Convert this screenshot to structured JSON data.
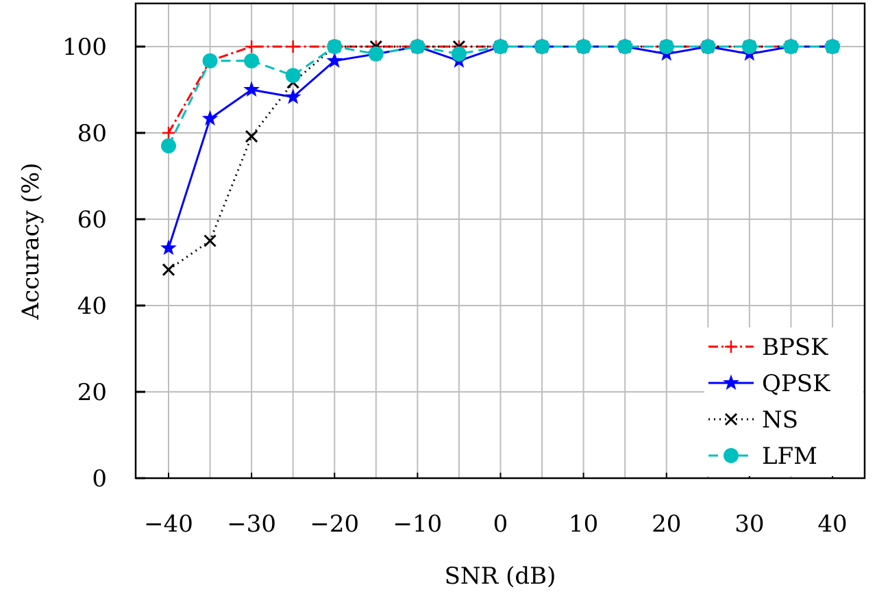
{
  "chart_data": {
    "type": "line",
    "title": "",
    "xlabel": "SNR (dB)",
    "ylabel": "Accuracy (%)",
    "xlim": [
      -44,
      44
    ],
    "ylim": [
      0,
      110
    ],
    "grid": true,
    "legend_position": "bottom-right",
    "x": [
      -40,
      -35,
      -30,
      -25,
      -20,
      -15,
      -10,
      -5,
      0,
      5,
      10,
      15,
      20,
      25,
      30,
      35,
      40
    ],
    "xticks": [
      -40,
      -30,
      -20,
      -10,
      0,
      10,
      20,
      30,
      40
    ],
    "xtick_labels": [
      "−40",
      "−30",
      "−20",
      "−10",
      "0",
      "10",
      "20",
      "30",
      "40"
    ],
    "yticks": [
      0,
      20,
      40,
      60,
      80,
      100
    ],
    "ytick_labels": [
      "0",
      "20",
      "40",
      "60",
      "80",
      "100"
    ],
    "series": [
      {
        "name": "BPSK",
        "color": "#ff0000",
        "dash": "14,5,3,5",
        "marker": "plus",
        "values": [
          80,
          96.7,
          100,
          100,
          100,
          100,
          100,
          100,
          100,
          100,
          100,
          100,
          100,
          100,
          100,
          100,
          100
        ]
      },
      {
        "name": "QPSK",
        "color": "#0000ff",
        "dash": "",
        "marker": "star",
        "values": [
          53.3,
          83.3,
          90,
          88.3,
          96.7,
          98.3,
          100,
          96.7,
          100,
          100,
          100,
          100,
          98.3,
          100,
          98.3,
          100,
          100
        ]
      },
      {
        "name": "NS",
        "color": "#000000",
        "dash": "2,6",
        "marker": "cross",
        "values": [
          48.3,
          55,
          79.2,
          91.7,
          100,
          100,
          100,
          100,
          100,
          100,
          100,
          100,
          100,
          100,
          100,
          100,
          100
        ]
      },
      {
        "name": "LFM",
        "color": "#00bfbf",
        "dash": "14,8",
        "marker": "circle",
        "values": [
          77,
          96.7,
          96.7,
          93.3,
          100,
          98.3,
          100,
          98.3,
          100,
          100,
          100,
          100,
          100,
          100,
          100,
          100,
          100
        ]
      }
    ]
  }
}
